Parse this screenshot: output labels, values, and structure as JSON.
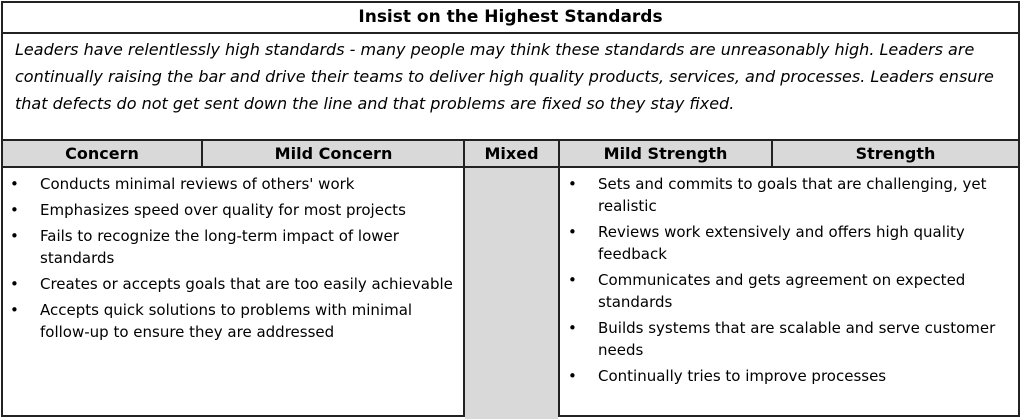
{
  "title": "Insist on the Highest Standards",
  "description": "Leaders have relentlessly high standards - many people may think these standards are unreasonably high. Leaders are continually raising the bar and drive their teams to deliver high quality products, services, and processes. Leaders ensure that defects do not get sent down the line and that problems are fixed so they stay fixed.",
  "columns": [
    "Concern",
    "Mild Concern",
    "Mixed",
    "Mild Strength",
    "Strength"
  ],
  "concern_items": [
    "Conducts minimal reviews of others' work",
    "Emphasizes speed over quality for most projects",
    "Fails to recognize the long-term impact of lower standards",
    "Creates or accepts goals that are too easily achievable",
    "Accepts quick solutions to problems with minimal follow-up to ensure they are addressed"
  ],
  "strength_items": [
    "Sets and commits to goals that are challenging, yet realistic",
    "Reviews work extensively and offers high quality feedback",
    "Communicates and gets agreement on expected standards",
    "Builds systems that are scalable and serve customer needs",
    "Continually tries to improve processes"
  ],
  "bullet": "•",
  "colors": {
    "header_fill": "#d9d9d9",
    "border": "#222222"
  }
}
